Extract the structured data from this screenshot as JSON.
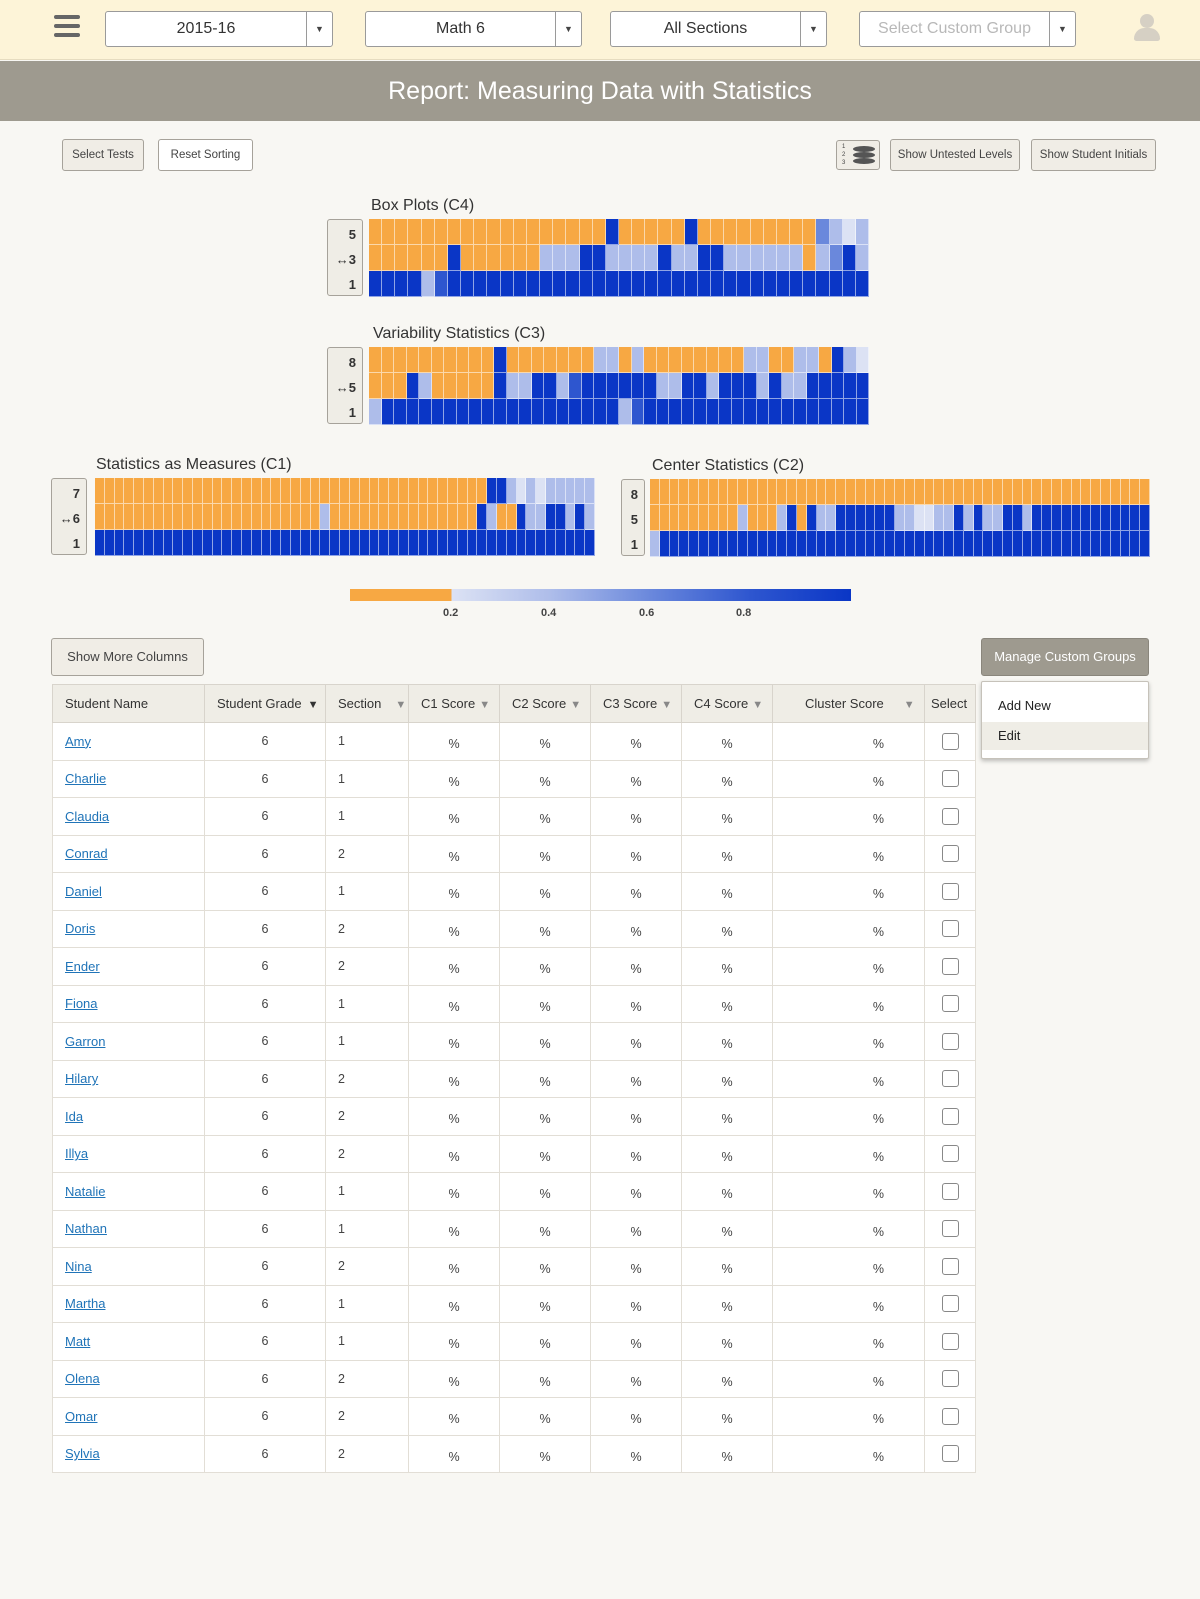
{
  "header": {
    "year": "2015-16",
    "course": "Math 6",
    "sections": "All Sections",
    "custom_group_placeholder": "Select Custom Group",
    "dropdown_arrow": "▼"
  },
  "report_title": "Report: Measuring Data with Statistics",
  "toolbar": {
    "select_tests": "Select Tests",
    "reset_sorting": "Reset Sorting",
    "show_untested_levels": "Show Untested Levels",
    "show_student_initials": "Show Student Initials",
    "stack_icon_digits": "1 2 3"
  },
  "colors": {
    "orange": "#f7a843",
    "blue_1": "#dce2f4",
    "blue_2": "#aebdea",
    "blue_3": "#6a88dc",
    "blue_4": "#2e56cf",
    "blue_5": "#0a36c6"
  },
  "heatmaps": {
    "box_plots": {
      "title": "Box Plots (C4)",
      "levels": [
        "5",
        "↔3",
        "1"
      ],
      "rows": [
        "OOOOOOOOOOOOOOOOOOBOOOOOBOOOOOOOOO3A1A",
        "OOOOOOBOOOOOOAAABBAAAABAABBAAAAAAOA3BA",
        "BBBBACBBBBBBBBBBBBBBBBBBBBBBBBBBBBBBBB"
      ]
    },
    "variability": {
      "title": "Variability Statistics  (C3)",
      "levels": [
        "8",
        "↔5",
        "1"
      ],
      "rows": [
        "OOOOOOOOOOBOOOOOOOAAOAOOOOOOOOAAOOAAOBA1",
        "OOOBAOOOOOBAABBACBBBBBBAABBABBBABAABBB",
        "ABBBBBBBBBBBBBBBBBBBACBBBBBBBBBBBBBBBBB"
      ]
    },
    "stats_measures": {
      "title": "Statistics as Measures (C1)",
      "levels": [
        "7",
        "↔6",
        "1"
      ],
      "rows": [
        "OOOOOOOOOOOOOOOOOOOOOOOOOOOOOOOOOOOOOOOOBBA1A1AAA",
        "OOOOOOOOOOOOOOOOOOOOOOOAOOOOOOOOOOOOOOOBAOOBAABBABA",
        "BBBBBBBBBBBBBBBBBBBBBBBBBBBBBBBBBBBBBBBBBBBBBBB"
      ]
    },
    "center": {
      "title": "Center Statistics (C2)",
      "levels": [
        "8",
        "5",
        "1"
      ],
      "rows": [
        "OOOOOOOOOOOOOOOOOOOOOOOOOOOOOOOOOOOOOOOOOOOOOOOOOOO",
        "OOOOOOOOOAOOOABOBAABBBBBBAA11AABABAABBABBBBBBBBB",
        "ABBBBBBBBBBBBBBBBBBBBBBBBBBBBBBBBBBBBBBBBBBBBBBBBB"
      ]
    }
  },
  "legend": {
    "ticks": [
      "0.2",
      "0.4",
      "0.6",
      "0.8"
    ]
  },
  "show_more_columns": "Show More Columns",
  "manage_custom_groups": "Manage Custom Groups",
  "custom_group_menu": {
    "add_new": "Add New",
    "edit": "Edit"
  },
  "table": {
    "headers": [
      "Student Name",
      "Student Grade",
      "Section",
      "C1 Score",
      "C2 Score",
      "C3 Score",
      "C4 Score",
      "Cluster Score",
      "Select"
    ],
    "rows": [
      {
        "name": "Amy",
        "grade": "6",
        "section": "1",
        "c1": "%",
        "c2": "%",
        "c3": "%",
        "c4": "%",
        "cluster": "%"
      },
      {
        "name": "Charlie",
        "grade": "6",
        "section": "1",
        "c1": "%",
        "c2": "%",
        "c3": "%",
        "c4": "%",
        "cluster": "%"
      },
      {
        "name": "Claudia",
        "grade": "6",
        "section": "1",
        "c1": "%",
        "c2": "%",
        "c3": "%",
        "c4": "%",
        "cluster": "%"
      },
      {
        "name": "Conrad",
        "grade": "6",
        "section": "2",
        "c1": "%",
        "c2": "%",
        "c3": "%",
        "c4": "%",
        "cluster": "%"
      },
      {
        "name": "Daniel",
        "grade": "6",
        "section": "1",
        "c1": "%",
        "c2": "%",
        "c3": "%",
        "c4": "%",
        "cluster": "%"
      },
      {
        "name": "Doris",
        "grade": "6",
        "section": "2",
        "c1": "%",
        "c2": "%",
        "c3": "%",
        "c4": "%",
        "cluster": "%"
      },
      {
        "name": "Ender",
        "grade": "6",
        "section": "2",
        "c1": "%",
        "c2": "%",
        "c3": "%",
        "c4": "%",
        "cluster": "%"
      },
      {
        "name": "Fiona",
        "grade": "6",
        "section": "1",
        "c1": "%",
        "c2": "%",
        "c3": "%",
        "c4": "%",
        "cluster": "%"
      },
      {
        "name": "Garron",
        "grade": "6",
        "section": "1",
        "c1": "%",
        "c2": "%",
        "c3": "%",
        "c4": "%",
        "cluster": "%"
      },
      {
        "name": "Hilary",
        "grade": "6",
        "section": "2",
        "c1": "%",
        "c2": "%",
        "c3": "%",
        "c4": "%",
        "cluster": "%"
      },
      {
        "name": "Ida",
        "grade": "6",
        "section": "2",
        "c1": "%",
        "c2": "%",
        "c3": "%",
        "c4": "%",
        "cluster": "%"
      },
      {
        "name": "Illya",
        "grade": "6",
        "section": "2",
        "c1": "%",
        "c2": "%",
        "c3": "%",
        "c4": "%",
        "cluster": "%"
      },
      {
        "name": "Natalie",
        "grade": "6",
        "section": "1",
        "c1": "%",
        "c2": "%",
        "c3": "%",
        "c4": "%",
        "cluster": "%"
      },
      {
        "name": "Nathan",
        "grade": "6",
        "section": "1",
        "c1": "%",
        "c2": "%",
        "c3": "%",
        "c4": "%",
        "cluster": "%"
      },
      {
        "name": "Nina",
        "grade": "6",
        "section": "2",
        "c1": "%",
        "c2": "%",
        "c3": "%",
        "c4": "%",
        "cluster": "%"
      },
      {
        "name": "Martha",
        "grade": "6",
        "section": "1",
        "c1": "%",
        "c2": "%",
        "c3": "%",
        "c4": "%",
        "cluster": "%"
      },
      {
        "name": "Matt",
        "grade": "6",
        "section": "1",
        "c1": "%",
        "c2": "%",
        "c3": "%",
        "c4": "%",
        "cluster": "%"
      },
      {
        "name": "Olena",
        "grade": "6",
        "section": "2",
        "c1": "%",
        "c2": "%",
        "c3": "%",
        "c4": "%",
        "cluster": "%"
      },
      {
        "name": "Omar",
        "grade": "6",
        "section": "2",
        "c1": "%",
        "c2": "%",
        "c3": "%",
        "c4": "%",
        "cluster": "%"
      },
      {
        "name": "Sylvia",
        "grade": "6",
        "section": "2",
        "c1": "%",
        "c2": "%",
        "c3": "%",
        "c4": "%",
        "cluster": "%"
      }
    ]
  }
}
